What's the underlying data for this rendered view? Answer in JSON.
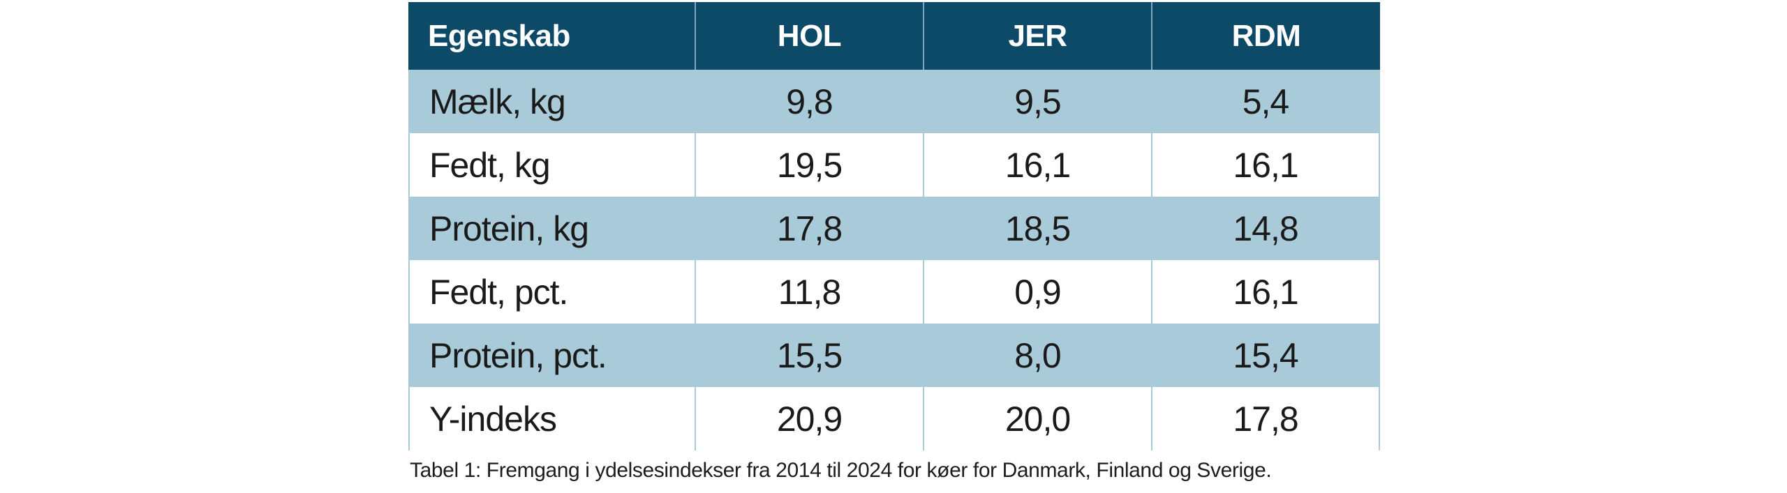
{
  "table": {
    "header": [
      "Egenskab",
      "HOL",
      "JER",
      "RDM"
    ],
    "rows": [
      {
        "label": "Mælk, kg",
        "values": [
          "9,8",
          "9,5",
          "5,4"
        ]
      },
      {
        "label": "Fedt, kg",
        "values": [
          "19,5",
          "16,1",
          "16,1"
        ]
      },
      {
        "label": "Protein, kg",
        "values": [
          "17,8",
          "18,5",
          "14,8"
        ]
      },
      {
        "label": "Fedt, pct.",
        "values": [
          "11,8",
          "0,9",
          "16,1"
        ]
      },
      {
        "label": "Protein, pct.",
        "values": [
          "15,5",
          "8,0",
          "15,4"
        ]
      },
      {
        "label": "Y-indeks",
        "values": [
          "20,9",
          "20,0",
          "17,8"
        ]
      }
    ]
  },
  "caption": "Tabel 1: Fremgang i ydelsesindekser fra 2014 til 2024 for køer for Danmark, Finland og Sverige.",
  "colors": {
    "header_bg": "#0D4A68",
    "header_text": "#FFFFFF",
    "row_alt_bg": "#A9CBD9",
    "row_bg": "#FFFFFF",
    "body_text": "#1A1A1A",
    "grid_line": "#A9CBD9",
    "header_divider": "#7FA7BD"
  },
  "chart_data": {
    "type": "table",
    "title": "Tabel 1",
    "caption": "Tabel 1: Fremgang i ydelsesindekser fra 2014 til 2024 for køer for Danmark, Finland og Sverige.",
    "columns": [
      "Egenskab",
      "HOL",
      "JER",
      "RDM"
    ],
    "rows": [
      [
        "Mælk, kg",
        9.8,
        9.5,
        5.4
      ],
      [
        "Fedt, kg",
        19.5,
        16.1,
        16.1
      ],
      [
        "Protein, kg",
        17.8,
        18.5,
        14.8
      ],
      [
        "Fedt, pct.",
        11.8,
        0.9,
        16.1
      ],
      [
        "Protein, pct.",
        15.5,
        8.0,
        15.4
      ],
      [
        "Y-indeks",
        20.9,
        20.0,
        17.8
      ]
    ]
  }
}
